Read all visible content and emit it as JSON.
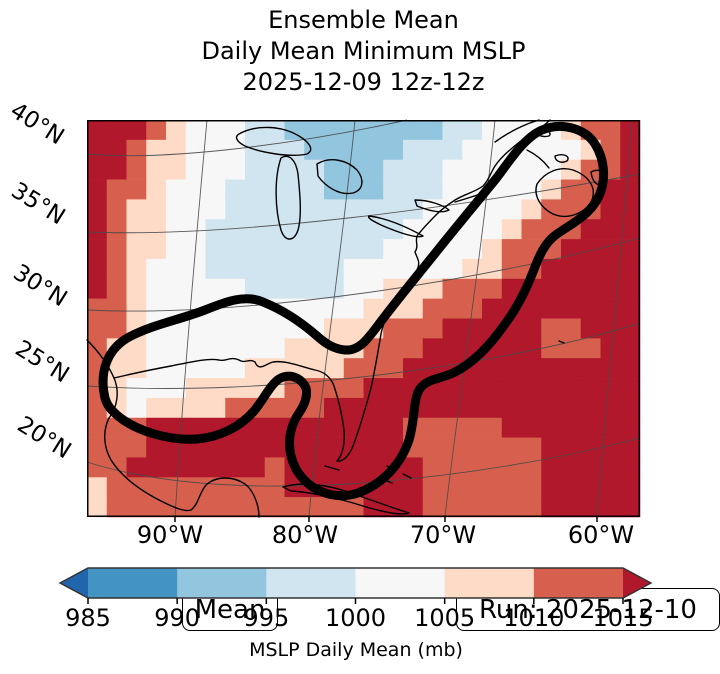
{
  "title": {
    "line1": "Ensemble Mean",
    "line2": "Daily Mean Minimum MSLP",
    "line3": "2025-12-09 12z-12z"
  },
  "map_annotations": {
    "mean_label": "Mean",
    "run_label": "Run: 2025-12-10"
  },
  "axes": {
    "lat_labels": [
      "40°N",
      "35°N",
      "30°N",
      "25°N",
      "20°N"
    ],
    "lon_labels": [
      "90°W",
      "80°W",
      "70°W",
      "60°W"
    ]
  },
  "colorbar": {
    "ticks": [
      "985",
      "990",
      "995",
      "1000",
      "1005",
      "1010",
      "1015"
    ],
    "label": "MSLP Daily Mean (mb)"
  },
  "chart_data": {
    "type": "heatmap",
    "title": "Ensemble Mean Daily Mean Minimum MSLP 2025-12-09 12z-12z",
    "variable": "MSLP Daily Mean",
    "units": "mb",
    "run": "2025-12-10",
    "statistic": "Mean",
    "x_tick_labels": [
      "90°W",
      "80°W",
      "70°W",
      "60°W"
    ],
    "y_tick_labels": [
      "40°N",
      "35°N",
      "30°N",
      "25°N",
      "20°N"
    ],
    "legend_position": "bottom",
    "grid_on": true,
    "colormap": {
      "levels": [
        985,
        990,
        995,
        1000,
        1005,
        1010,
        1015
      ],
      "colors": [
        "#2166ac",
        "#4393c3",
        "#92c5de",
        "#d1e5f0",
        "#f7f7f7",
        "#fddbc7",
        "#d6604d",
        "#b2182b"
      ],
      "extend": "both",
      "outline": "#333333"
    },
    "highlight_contour": {
      "color": "#000000",
      "width": 9,
      "description": "thick closed outline from western Gulf of Mexico along Gulf coast, lobe south of Florida, northeast along US east coast to a loop around Nova Scotia"
    },
    "field_grid_mb": {
      "ncols": 28,
      "nrows": 20,
      "values": [
        [
          1016,
          1016,
          1016,
          1012,
          1007,
          1002,
          1002,
          1002,
          997,
          997,
          992,
          992,
          992,
          992,
          992,
          992,
          992,
          992,
          997,
          997,
          1002,
          1002,
          1002,
          1002,
          1007,
          1012,
          1012,
          1016
        ],
        [
          1016,
          1016,
          1012,
          1007,
          1007,
          1002,
          1002,
          1002,
          997,
          997,
          997,
          992,
          992,
          992,
          992,
          992,
          997,
          997,
          997,
          1002,
          1002,
          1002,
          1002,
          1002,
          1002,
          1007,
          1012,
          1016
        ],
        [
          1016,
          1016,
          1012,
          1007,
          1007,
          1002,
          1002,
          1002,
          997,
          997,
          997,
          997,
          992,
          992,
          992,
          997,
          997,
          997,
          1002,
          1002,
          1002,
          1002,
          1002,
          1002,
          1007,
          1012,
          1012,
          1016
        ],
        [
          1016,
          1012,
          1012,
          1007,
          1002,
          1002,
          1002,
          997,
          997,
          997,
          997,
          997,
          992,
          992,
          992,
          997,
          997,
          997,
          1002,
          1002,
          1002,
          1002,
          1002,
          1007,
          1012,
          1012,
          1016,
          1016
        ],
        [
          1016,
          1012,
          1007,
          1007,
          1002,
          1002,
          1002,
          997,
          997,
          997,
          997,
          997,
          997,
          997,
          997,
          997,
          997,
          1002,
          1002,
          1002,
          1002,
          1002,
          1007,
          1012,
          1012,
          1012,
          1016,
          1016
        ],
        [
          1016,
          1012,
          1007,
          1007,
          1002,
          1002,
          997,
          997,
          997,
          997,
          997,
          997,
          997,
          997,
          997,
          997,
          1002,
          1002,
          1002,
          1002,
          1002,
          1007,
          1012,
          1012,
          1012,
          1016,
          1016,
          1016
        ],
        [
          1016,
          1012,
          1007,
          1007,
          1002,
          1002,
          997,
          997,
          997,
          997,
          997,
          997,
          997,
          997,
          997,
          1002,
          1002,
          1002,
          1002,
          1002,
          1007,
          1012,
          1012,
          1012,
          1016,
          1016,
          1016,
          1016
        ],
        [
          1016,
          1012,
          1007,
          1002,
          1002,
          1002,
          997,
          997,
          997,
          997,
          997,
          997,
          997,
          1002,
          1002,
          1002,
          1002,
          1002,
          1002,
          1007,
          1007,
          1012,
          1012,
          1016,
          1016,
          1016,
          1016,
          1016
        ],
        [
          1016,
          1012,
          1007,
          1002,
          1002,
          1002,
          1002,
          1002,
          997,
          997,
          997,
          997,
          997,
          1002,
          1002,
          1007,
          1007,
          1007,
          1012,
          1012,
          1012,
          1016,
          1016,
          1016,
          1016,
          1016,
          1016,
          1016
        ],
        [
          1012,
          1012,
          1007,
          1002,
          1002,
          1002,
          1002,
          1002,
          1002,
          1002,
          1002,
          1002,
          1002,
          1002,
          1007,
          1007,
          1007,
          1012,
          1012,
          1012,
          1016,
          1016,
          1016,
          1016,
          1016,
          1016,
          1016,
          1016
        ],
        [
          1012,
          1012,
          1007,
          1002,
          1002,
          1002,
          1002,
          1002,
          1002,
          1002,
          1002,
          1002,
          1007,
          1007,
          1007,
          1012,
          1012,
          1012,
          1016,
          1016,
          1016,
          1016,
          1016,
          1012,
          1012,
          1016,
          1016,
          1016
        ],
        [
          1012,
          1007,
          1007,
          1002,
          1002,
          1002,
          1002,
          1002,
          1002,
          1002,
          1007,
          1007,
          1007,
          1007,
          1012,
          1012,
          1012,
          1016,
          1016,
          1016,
          1016,
          1016,
          1016,
          1012,
          1012,
          1012,
          1016,
          1016
        ],
        [
          1012,
          1007,
          1007,
          1002,
          1002,
          1002,
          1002,
          1002,
          1007,
          1007,
          1007,
          1007,
          1007,
          1012,
          1012,
          1012,
          1016,
          1016,
          1016,
          1016,
          1016,
          1016,
          1016,
          1016,
          1016,
          1016,
          1016,
          1016
        ],
        [
          1012,
          1007,
          1002,
          1002,
          1002,
          1007,
          1007,
          1007,
          1007,
          1007,
          1012,
          1012,
          1012,
          1012,
          1016,
          1016,
          1016,
          1016,
          1016,
          1016,
          1016,
          1016,
          1016,
          1016,
          1016,
          1016,
          1016,
          1016
        ],
        [
          1012,
          1007,
          1002,
          1007,
          1007,
          1007,
          1007,
          1012,
          1012,
          1012,
          1012,
          1012,
          1016,
          1016,
          1016,
          1016,
          1016,
          1016,
          1016,
          1016,
          1016,
          1016,
          1016,
          1016,
          1016,
          1016,
          1016,
          1016
        ],
        [
          1012,
          1012,
          1012,
          1016,
          1016,
          1016,
          1016,
          1016,
          1016,
          1016,
          1016,
          1016,
          1016,
          1016,
          1016,
          1016,
          1012,
          1012,
          1012,
          1012,
          1012,
          1016,
          1016,
          1016,
          1016,
          1016,
          1016,
          1016
        ],
        [
          1012,
          1012,
          1012,
          1016,
          1016,
          1016,
          1016,
          1016,
          1016,
          1016,
          1016,
          1016,
          1016,
          1016,
          1016,
          1016,
          1012,
          1012,
          1012,
          1012,
          1012,
          1012,
          1012,
          1016,
          1016,
          1016,
          1016,
          1016
        ],
        [
          1012,
          1012,
          1016,
          1016,
          1016,
          1016,
          1016,
          1016,
          1016,
          1012,
          1016,
          1016,
          1016,
          1016,
          1016,
          1016,
          1016,
          1012,
          1012,
          1012,
          1012,
          1012,
          1012,
          1016,
          1016,
          1016,
          1016,
          1016
        ],
        [
          1007,
          1012,
          1012,
          1012,
          1012,
          1012,
          1012,
          1012,
          1012,
          1012,
          1016,
          1016,
          1016,
          1016,
          1016,
          1016,
          1016,
          1012,
          1012,
          1012,
          1012,
          1012,
          1012,
          1016,
          1016,
          1016,
          1016,
          1016
        ],
        [
          1007,
          1012,
          1012,
          1012,
          1012,
          1012,
          1012,
          1012,
          1012,
          1012,
          1012,
          1012,
          1012,
          1012,
          1016,
          1016,
          1016,
          1012,
          1012,
          1012,
          1012,
          1012,
          1012,
          1016,
          1016,
          1016,
          1016,
          1016
        ]
      ]
    }
  }
}
